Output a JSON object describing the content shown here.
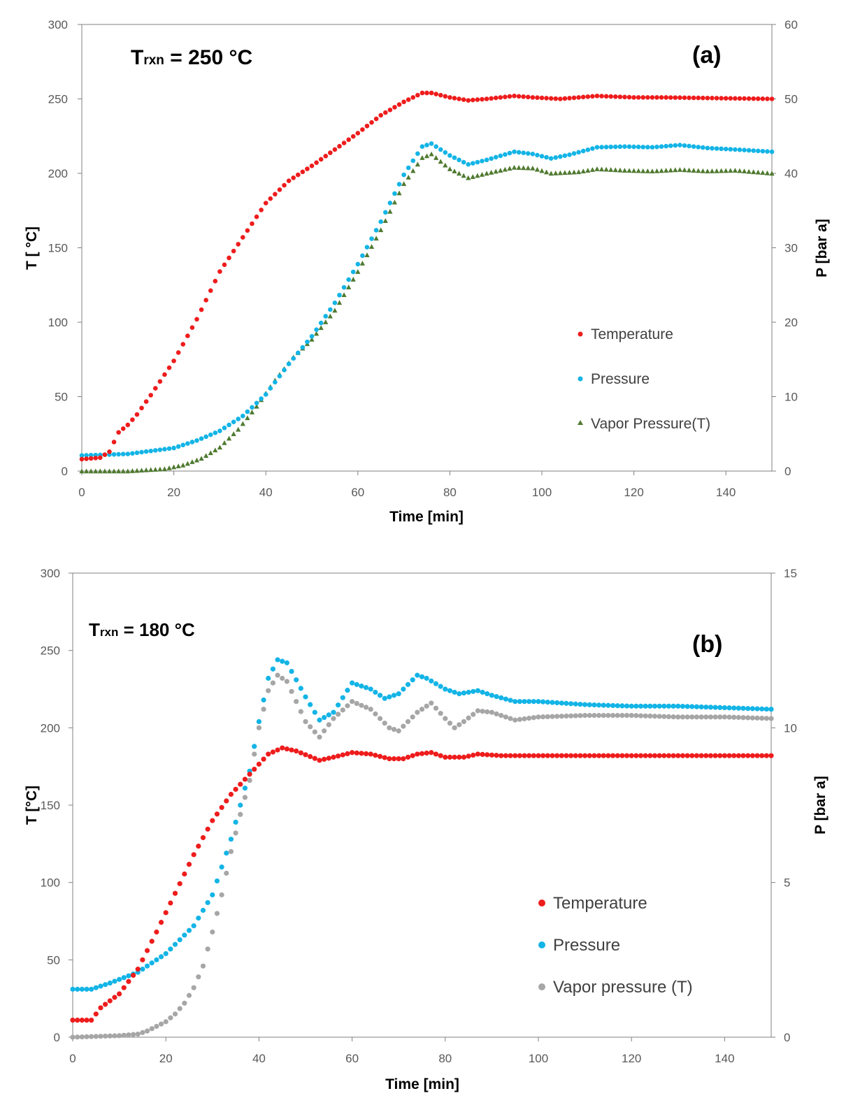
{
  "chart_data": [
    {
      "type": "scatter",
      "panel_label": "(a)",
      "annotation": {
        "main": "T",
        "sub": "rxn",
        "value": " = 250 °C"
      },
      "xlabel": "Time [min]",
      "ylabel": "T [ °C]",
      "y2label": "P [bar a]",
      "xlim": [
        0,
        150
      ],
      "ylim": [
        0,
        300
      ],
      "y2lim": [
        0,
        60
      ],
      "xticks": [
        "0",
        "20",
        "40",
        "60",
        "80",
        "100",
        "120",
        "140"
      ],
      "yticks": [
        "0",
        "50",
        "100",
        "150",
        "200",
        "250",
        "300"
      ],
      "y2ticks": [
        "0",
        "10",
        "20",
        "30",
        "40",
        "50",
        "60"
      ],
      "legend": [
        "Temperature",
        "Pressure",
        "Vapor Pressure(T)"
      ],
      "legend_position": "lower-right",
      "step": 1,
      "series": [
        {
          "name": "Temperature",
          "axis": "left",
          "color": "#ee1c1c",
          "marker": "circle",
          "points": [
            [
              0,
              8
            ],
            [
              4,
              9
            ],
            [
              6,
              13
            ],
            [
              8,
              26
            ],
            [
              10,
              31
            ],
            [
              12,
              38
            ],
            [
              15,
              51
            ],
            [
              20,
              74
            ],
            [
              25,
              102
            ],
            [
              30,
              134
            ],
            [
              35,
              157
            ],
            [
              40,
              180
            ],
            [
              45,
              195
            ],
            [
              50,
              205
            ],
            [
              55,
              216
            ],
            [
              60,
              227
            ],
            [
              65,
              239
            ],
            [
              70,
              248
            ],
            [
              74,
              254
            ],
            [
              76,
              254
            ],
            [
              80,
              251
            ],
            [
              84,
              249
            ],
            [
              88,
              250
            ],
            [
              94,
              252
            ],
            [
              98,
              251
            ],
            [
              104,
              250
            ],
            [
              112,
              252
            ],
            [
              120,
              251
            ],
            [
              126,
              251
            ],
            [
              150,
              250
            ]
          ]
        },
        {
          "name": "Pressure",
          "axis": "right",
          "color": "#13b4e6",
          "marker": "circle",
          "points": [
            [
              0,
              2.1
            ],
            [
              10,
              2.3
            ],
            [
              20,
              3.1
            ],
            [
              25,
              4.1
            ],
            [
              30,
              5.4
            ],
            [
              35,
              7.4
            ],
            [
              40,
              10.3
            ],
            [
              45,
              14.4
            ],
            [
              50,
              18.1
            ],
            [
              55,
              22.6
            ],
            [
              60,
              27.8
            ],
            [
              65,
              33.5
            ],
            [
              70,
              39.8
            ],
            [
              74,
              43.6
            ],
            [
              76,
              44
            ],
            [
              80,
              42.4
            ],
            [
              84,
              41.2
            ],
            [
              88,
              41.8
            ],
            [
              94,
              42.9
            ],
            [
              98,
              42.6
            ],
            [
              102,
              42.0
            ],
            [
              106,
              42.5
            ],
            [
              112,
              43.5
            ],
            [
              118,
              43.6
            ],
            [
              124,
              43.5
            ],
            [
              130,
              43.8
            ],
            [
              136,
              43.4
            ],
            [
              142,
              43.2
            ],
            [
              150,
              42.9
            ]
          ]
        },
        {
          "name": "Vapor Pressure(T)",
          "axis": "right",
          "color": "#4f7a30",
          "marker": "triangle",
          "points": [
            [
              0,
              0
            ],
            [
              10,
              0
            ],
            [
              18,
              0.3
            ],
            [
              22,
              0.8
            ],
            [
              26,
              1.7
            ],
            [
              30,
              3.2
            ],
            [
              34,
              5.6
            ],
            [
              38,
              8.7
            ],
            [
              42,
              12.2
            ],
            [
              46,
              15.3
            ],
            [
              50,
              17.7
            ],
            [
              55,
              21.6
            ],
            [
              60,
              26.8
            ],
            [
              65,
              32.4
            ],
            [
              70,
              38.6
            ],
            [
              74,
              42.1
            ],
            [
              76,
              42.6
            ],
            [
              80,
              40.6
            ],
            [
              84,
              39.4
            ],
            [
              88,
              40.0
            ],
            [
              94,
              40.8
            ],
            [
              98,
              40.7
            ],
            [
              102,
              40.0
            ],
            [
              108,
              40.2
            ],
            [
              112,
              40.6
            ],
            [
              118,
              40.4
            ],
            [
              124,
              40.3
            ],
            [
              130,
              40.5
            ],
            [
              136,
              40.3
            ],
            [
              142,
              40.4
            ],
            [
              150,
              40.0
            ]
          ]
        }
      ]
    },
    {
      "type": "scatter",
      "panel_label": "(b)",
      "annotation": {
        "main": "T",
        "sub": "rxn",
        "value": " = 180 °C"
      },
      "xlabel": "Time  [min]",
      "ylabel": "T [°C]",
      "y2label": "P [bar a]",
      "xlim": [
        0,
        150
      ],
      "ylim": [
        0,
        300
      ],
      "y2lim": [
        0,
        15
      ],
      "xticks": [
        "0",
        "20",
        "40",
        "60",
        "80",
        "100",
        "120",
        "140"
      ],
      "yticks": [
        "0",
        "50",
        "100",
        "150",
        "200",
        "250",
        "300"
      ],
      "y2ticks": [
        "0",
        "5",
        "10",
        "15"
      ],
      "legend": [
        "Temperature",
        "Pressure",
        "Vapor pressure (T)"
      ],
      "legend_position": "lower-right",
      "step": 1,
      "series": [
        {
          "name": "Temperature",
          "axis": "left",
          "color": "#ee1c1c",
          "marker": "circle",
          "points": [
            [
              0,
              11
            ],
            [
              4,
              11
            ],
            [
              6,
              19
            ],
            [
              10,
              28
            ],
            [
              14,
              44
            ],
            [
              18,
              68
            ],
            [
              22,
              93
            ],
            [
              26,
              118
            ],
            [
              30,
              140
            ],
            [
              34,
              157
            ],
            [
              38,
              170
            ],
            [
              42,
              183
            ],
            [
              45,
              187
            ],
            [
              48,
              185
            ],
            [
              53,
              179
            ],
            [
              56,
              181
            ],
            [
              60,
              184
            ],
            [
              64,
              183
            ],
            [
              68,
              180
            ],
            [
              71,
              180
            ],
            [
              74,
              183
            ],
            [
              77,
              184
            ],
            [
              80,
              181
            ],
            [
              84,
              181
            ],
            [
              87,
              183
            ],
            [
              92,
              182
            ],
            [
              150,
              182
            ]
          ]
        },
        {
          "name": "Pressure",
          "axis": "right",
          "color": "#13b4e6",
          "marker": "circle",
          "points": [
            [
              0,
              1.55
            ],
            [
              4,
              1.55
            ],
            [
              8,
              1.75
            ],
            [
              14,
              2.1
            ],
            [
              20,
              2.7
            ],
            [
              26,
              3.6
            ],
            [
              30,
              4.6
            ],
            [
              34,
              6.4
            ],
            [
              36,
              7.5
            ],
            [
              38,
              8.6
            ],
            [
              40,
              10.2
            ],
            [
              42,
              11.6
            ],
            [
              44,
              12.2
            ],
            [
              46,
              12.1
            ],
            [
              50,
              11.0
            ],
            [
              53,
              10.25
            ],
            [
              56,
              10.5
            ],
            [
              60,
              11.45
            ],
            [
              64,
              11.25
            ],
            [
              67,
              10.95
            ],
            [
              70,
              11.1
            ],
            [
              74,
              11.7
            ],
            [
              76,
              11.6
            ],
            [
              80,
              11.25
            ],
            [
              83,
              11.1
            ],
            [
              87,
              11.2
            ],
            [
              90,
              11.05
            ],
            [
              95,
              10.85
            ],
            [
              100,
              10.85
            ],
            [
              110,
              10.75
            ],
            [
              120,
              10.7
            ],
            [
              130,
              10.7
            ],
            [
              140,
              10.65
            ],
            [
              150,
              10.6
            ]
          ]
        },
        {
          "name": "Vapor pressure (T)",
          "axis": "right",
          "color": "#a6a6a6",
          "marker": "circle",
          "points": [
            [
              0,
              0
            ],
            [
              10,
              0.05
            ],
            [
              14,
              0.1
            ],
            [
              16,
              0.2
            ],
            [
              18,
              0.35
            ],
            [
              20,
              0.5
            ],
            [
              22,
              0.75
            ],
            [
              24,
              1.1
            ],
            [
              26,
              1.6
            ],
            [
              28,
              2.3
            ],
            [
              30,
              3.4
            ],
            [
              32,
              4.6
            ],
            [
              34,
              6.0
            ],
            [
              36,
              7.2
            ],
            [
              38,
              8.3
            ],
            [
              40,
              10.0
            ],
            [
              42,
              11.2
            ],
            [
              44,
              11.7
            ],
            [
              46,
              11.5
            ],
            [
              50,
              10.2
            ],
            [
              53,
              9.7
            ],
            [
              56,
              10.3
            ],
            [
              60,
              10.85
            ],
            [
              64,
              10.6
            ],
            [
              68,
              10.0
            ],
            [
              70,
              9.9
            ],
            [
              74,
              10.5
            ],
            [
              77,
              10.8
            ],
            [
              80,
              10.3
            ],
            [
              82,
              10.0
            ],
            [
              84,
              10.2
            ],
            [
              87,
              10.55
            ],
            [
              90,
              10.5
            ],
            [
              95,
              10.25
            ],
            [
              100,
              10.35
            ],
            [
              110,
              10.4
            ],
            [
              120,
              10.4
            ],
            [
              130,
              10.35
            ],
            [
              140,
              10.35
            ],
            [
              150,
              10.3
            ]
          ]
        }
      ]
    }
  ]
}
